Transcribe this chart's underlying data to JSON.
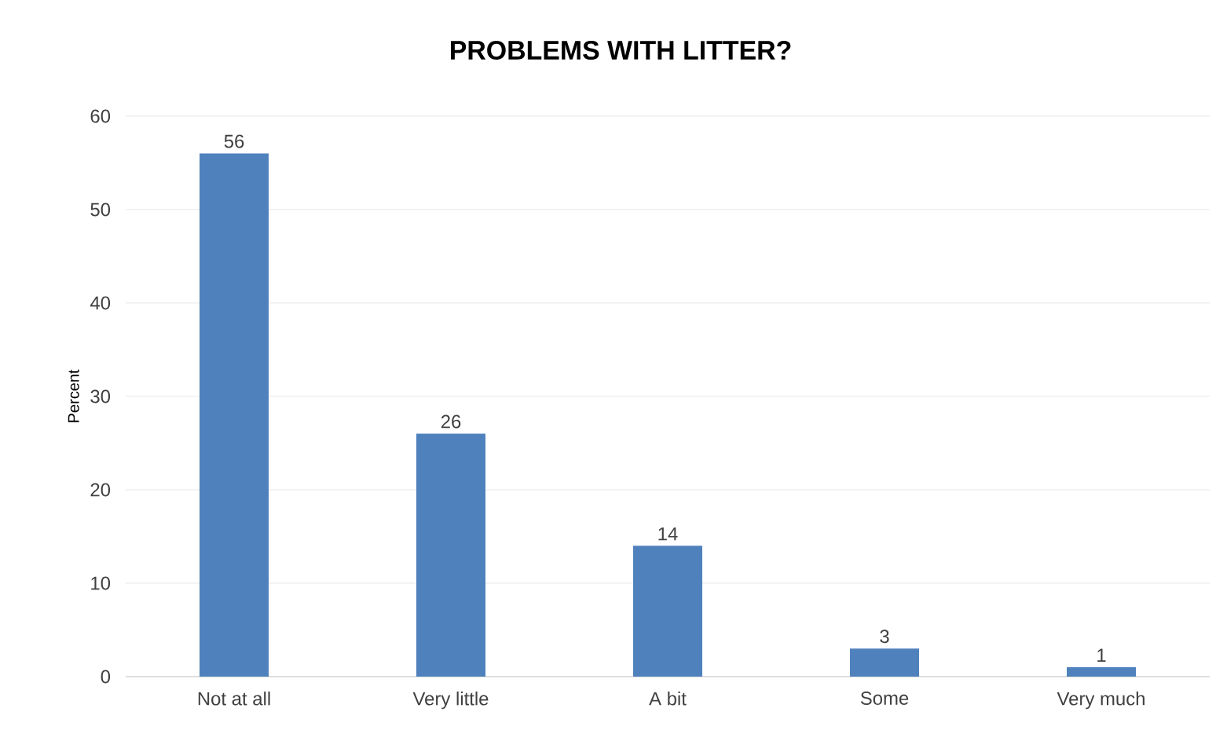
{
  "chart_data": {
    "type": "bar",
    "title": "PROBLEMS WITH LITTER?",
    "ylabel": "Percent",
    "categories": [
      "Not at all",
      "Very little",
      "A bit",
      "Some",
      "Very much"
    ],
    "values": [
      56,
      26,
      14,
      3,
      1
    ],
    "color": "#4f81bd",
    "ylim": [
      0,
      60
    ],
    "yticks": [
      0,
      10,
      20,
      30,
      40,
      50,
      60
    ],
    "grid": "y",
    "data_labels": true
  }
}
